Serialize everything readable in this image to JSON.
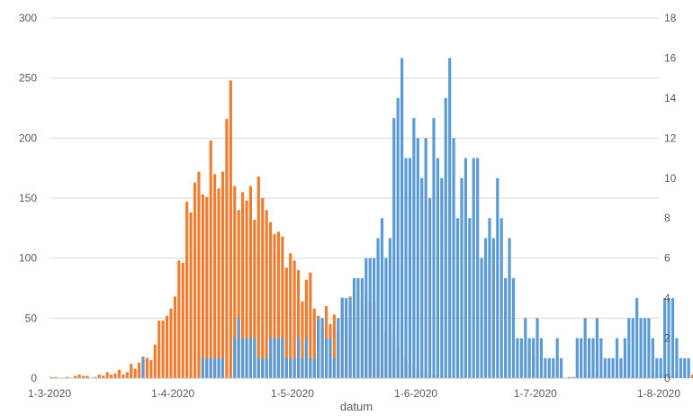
{
  "chart_data": {
    "type": "bar",
    "xlabel": "datum",
    "x_range": [
      "2020-03-01",
      "2020-08-01"
    ],
    "x_ticks": [
      "1-3-2020",
      "1-4-2020",
      "1-5-2020",
      "1-6-2020",
      "1-7-2020",
      "1-8-2020"
    ],
    "y_left": {
      "min": 0,
      "max": 300,
      "ticks": [
        "0",
        "50",
        "100",
        "150",
        "200",
        "250",
        "300"
      ]
    },
    "y_right": {
      "min": 0,
      "max": 18,
      "ticks": [
        "0",
        "2",
        "4",
        "6",
        "8",
        "10",
        "12",
        "14",
        "16",
        "18"
      ]
    },
    "grid": true,
    "legend": "none",
    "series": [
      {
        "axis": "left",
        "color": "#ed7d31",
        "start_date": "2020-03-01",
        "values": [
          1,
          1,
          0,
          0,
          1,
          0,
          2,
          3,
          2,
          2,
          0,
          1,
          3,
          2,
          5,
          3,
          4,
          7,
          3,
          5,
          12,
          8,
          13,
          18,
          17,
          15,
          28,
          48,
          48,
          52,
          58,
          68,
          98,
          96,
          147,
          138,
          163,
          172,
          153,
          151,
          198,
          170,
          158,
          172,
          216,
          248,
          160,
          140,
          155,
          148,
          160,
          132,
          168,
          150,
          140,
          130,
          120,
          122,
          118,
          92,
          104,
          98,
          90,
          64,
          82,
          88,
          58,
          52,
          45,
          60,
          45,
          53,
          40,
          67,
          50,
          68,
          73,
          82,
          65,
          70,
          64,
          65,
          50,
          35,
          40,
          48,
          35,
          25,
          20,
          15,
          12,
          10,
          8,
          6,
          5,
          4,
          3,
          3,
          2,
          2,
          2,
          2,
          2,
          1,
          2,
          1,
          1,
          1,
          1,
          0,
          0,
          1,
          1,
          1,
          1,
          1,
          0,
          1,
          0,
          0,
          0,
          20,
          0,
          1,
          1,
          0,
          0,
          0,
          0,
          0,
          1,
          1,
          0,
          0,
          0,
          3,
          1,
          4,
          1,
          2,
          1,
          0,
          0,
          1,
          0,
          0,
          1,
          0,
          0,
          2,
          1,
          2,
          3,
          3,
          4,
          2,
          2,
          3,
          2,
          1,
          1,
          3,
          1,
          2,
          1,
          0,
          1,
          0,
          0,
          1,
          1,
          0,
          1,
          1,
          0,
          0,
          1,
          0,
          1,
          0,
          0,
          0
        ]
      },
      {
        "axis": "right",
        "color": "#5b9bd5",
        "start_date": "2020-03-01",
        "values": [
          0,
          0,
          0,
          0,
          0,
          0,
          0,
          0,
          0,
          0,
          0,
          0,
          0,
          0,
          0,
          0,
          0,
          0,
          0,
          0,
          0,
          0,
          0,
          1,
          0,
          0,
          0,
          0,
          0,
          0,
          0,
          0,
          0,
          0,
          0,
          0,
          0,
          0,
          1,
          1,
          1,
          1,
          1,
          1,
          0,
          0,
          2,
          3,
          2,
          2,
          2,
          2,
          1,
          1,
          1,
          2,
          2,
          2,
          2,
          1,
          1,
          1,
          2,
          1,
          2,
          1,
          1,
          3,
          3,
          2,
          2,
          1,
          3,
          4,
          4,
          4,
          5,
          5,
          5,
          6,
          6,
          6,
          7,
          8,
          6,
          7,
          13,
          14,
          16,
          11,
          11,
          13,
          12,
          10,
          12,
          9,
          13,
          11,
          10,
          14,
          16,
          12,
          8,
          10,
          11,
          8,
          11,
          11,
          6,
          7,
          8,
          7,
          10,
          8,
          5,
          7,
          5,
          2,
          2,
          3,
          2,
          2,
          3,
          2,
          1,
          1,
          1,
          2,
          1,
          0,
          0,
          0,
          2,
          2,
          3,
          2,
          2,
          3,
          2,
          1,
          1,
          1,
          2,
          1,
          2,
          3,
          3,
          4,
          3,
          3,
          3,
          2,
          1,
          1,
          4,
          4,
          4,
          2,
          1,
          1,
          1,
          0,
          0,
          0,
          0,
          1,
          0,
          0,
          0,
          0,
          1,
          0,
          0,
          0,
          0,
          0,
          0,
          0,
          0
        ]
      }
    ]
  }
}
